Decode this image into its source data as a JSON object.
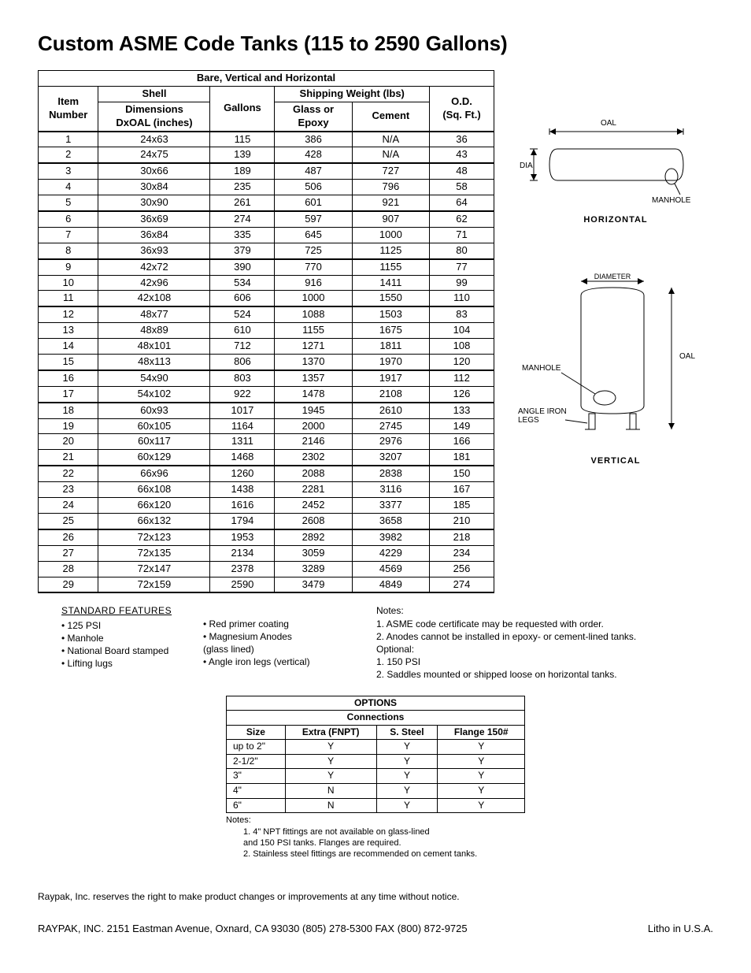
{
  "title": "Custom ASME Code Tanks (115 to 2590 Gallons)",
  "main_table": {
    "super_header": "Bare, Vertical and Horizontal",
    "headers": {
      "item": "Item\nNumber",
      "shell_top": "Shell",
      "shell": "Dimensions\nDxOAL (inches)",
      "gallons": "Gallons",
      "ship_top": "Shipping Weight (lbs)",
      "glass": "Glass or\nEpoxy",
      "cement": "Cement",
      "od": "O.D.\n(Sq. Ft.)"
    },
    "thick_rows": [
      1,
      3,
      6,
      9,
      12,
      16,
      18,
      22,
      26
    ],
    "rows": [
      [
        "1",
        "24x63",
        "115",
        "386",
        "N/A",
        "36"
      ],
      [
        "2",
        "24x75",
        "139",
        "428",
        "N/A",
        "43"
      ],
      [
        "3",
        "30x66",
        "189",
        "487",
        "727",
        "48"
      ],
      [
        "4",
        "30x84",
        "235",
        "506",
        "796",
        "58"
      ],
      [
        "5",
        "30x90",
        "261",
        "601",
        "921",
        "64"
      ],
      [
        "6",
        "36x69",
        "274",
        "597",
        "907",
        "62"
      ],
      [
        "7",
        "36x84",
        "335",
        "645",
        "1000",
        "71"
      ],
      [
        "8",
        "36x93",
        "379",
        "725",
        "1125",
        "80"
      ],
      [
        "9",
        "42x72",
        "390",
        "770",
        "1155",
        "77"
      ],
      [
        "10",
        "42x96",
        "534",
        "916",
        "1411",
        "99"
      ],
      [
        "11",
        "42x108",
        "606",
        "1000",
        "1550",
        "110"
      ],
      [
        "12",
        "48x77",
        "524",
        "1088",
        "1503",
        "83"
      ],
      [
        "13",
        "48x89",
        "610",
        "1155",
        "1675",
        "104"
      ],
      [
        "14",
        "48x101",
        "712",
        "1271",
        "1811",
        "108"
      ],
      [
        "15",
        "48x113",
        "806",
        "1370",
        "1970",
        "120"
      ],
      [
        "16",
        "54x90",
        "803",
        "1357",
        "1917",
        "112"
      ],
      [
        "17",
        "54x102",
        "922",
        "1478",
        "2108",
        "126"
      ],
      [
        "18",
        "60x93",
        "1017",
        "1945",
        "2610",
        "133"
      ],
      [
        "19",
        "60x105",
        "1164",
        "2000",
        "2745",
        "149"
      ],
      [
        "20",
        "60x117",
        "1311",
        "2146",
        "2976",
        "166"
      ],
      [
        "21",
        "60x129",
        "1468",
        "2302",
        "3207",
        "181"
      ],
      [
        "22",
        "66x96",
        "1260",
        "2088",
        "2838",
        "150"
      ],
      [
        "23",
        "66x108",
        "1438",
        "2281",
        "3116",
        "167"
      ],
      [
        "24",
        "66x120",
        "1616",
        "2452",
        "3377",
        "185"
      ],
      [
        "25",
        "66x132",
        "1794",
        "2608",
        "3658",
        "210"
      ],
      [
        "26",
        "72x123",
        "1953",
        "2892",
        "3982",
        "218"
      ],
      [
        "27",
        "72x135",
        "2134",
        "3059",
        "4229",
        "234"
      ],
      [
        "28",
        "72x147",
        "2378",
        "3289",
        "4569",
        "256"
      ],
      [
        "29",
        "72x159",
        "2590",
        "3479",
        "4849",
        "274"
      ]
    ]
  },
  "diagrams": {
    "horizontal": {
      "oal": "OAL",
      "dia": "DIA.",
      "manhole": "MANHOLE",
      "label": "HORIZONTAL"
    },
    "vertical": {
      "diameter": "DIAMETER",
      "manhole": "MANHOLE",
      "oal": "OAL",
      "legs": "ANGLE IRON\nLEGS",
      "label": "VERTICAL"
    }
  },
  "features": {
    "title": "STANDARD FEATURES",
    "col1": [
      "• 125 PSI",
      "• Manhole",
      "• National Board stamped",
      "• Lifting lugs"
    ],
    "col2": [
      "• Red primer coating",
      "• Magnesium Anodes",
      "  (glass lined)",
      "• Angle iron legs (vertical)"
    ]
  },
  "notes": {
    "title": "Notes:",
    "lines": [
      "1.  ASME code certificate may be requested with order.",
      "2.  Anodes cannot be installed in epoxy- or cement-lined tanks.",
      "Optional:",
      "1.  150 PSI",
      "2.  Saddles mounted or shipped loose on horizontal tanks."
    ]
  },
  "options_table": {
    "title": "OPTIONS",
    "subtitle": "Connections",
    "headers": [
      "Size",
      "Extra (FNPT)",
      "S. Steel",
      "Flange 150#"
    ],
    "rows": [
      [
        "up to 2\"",
        "Y",
        "Y",
        "Y"
      ],
      [
        "2-1/2\"",
        "Y",
        "Y",
        "Y"
      ],
      [
        "3\"",
        "Y",
        "Y",
        "Y"
      ],
      [
        "4\"",
        "N",
        "Y",
        "Y"
      ],
      [
        "6\"",
        "N",
        "Y",
        "Y"
      ]
    ],
    "notes_title": "Notes:",
    "notes": [
      "1.    4\" NPT fittings are not available on glass-lined",
      "       and 150 PSI tanks.  Flanges are required.",
      "2.    Stainless steel fittings are recommended on cement tanks."
    ]
  },
  "disclaimer": "Raypak, Inc. reserves the right to make product changes or improvements at any time without notice.",
  "footer": {
    "left": "RAYPAK, INC.   2151 Eastman Avenue, Oxnard, CA 93030 (805) 278-5300 FAX (800) 872-9725",
    "right": "Litho in U.S.A."
  }
}
